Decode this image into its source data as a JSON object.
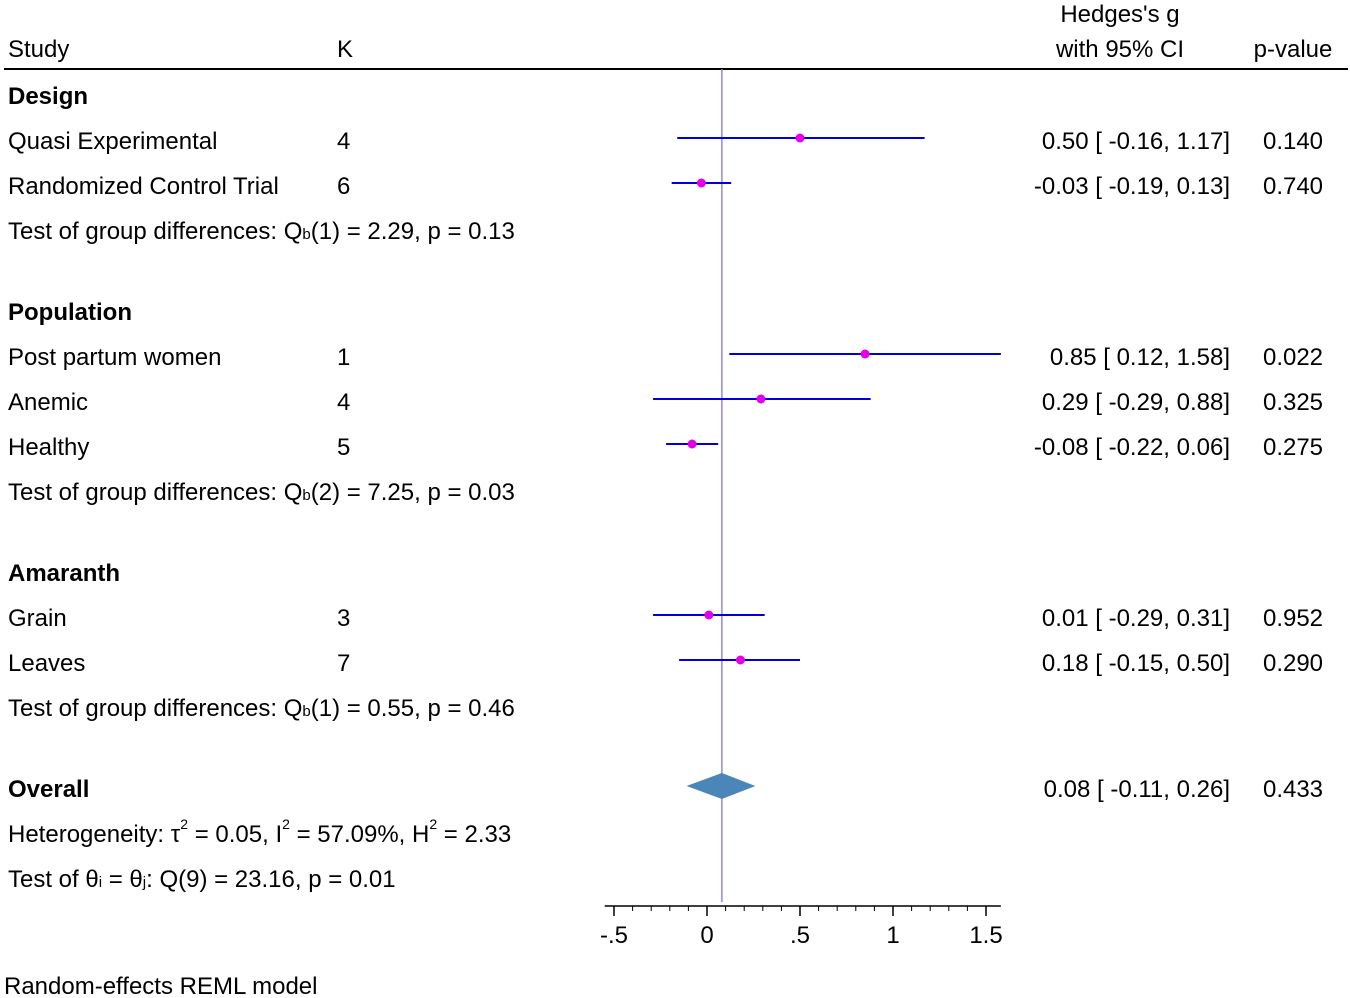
{
  "chart_data": {
    "type": "forest",
    "columns": {
      "study": "Study",
      "k": "K",
      "effect_line1": "Hedges's g",
      "effect_line2": "with 95% CI",
      "pvalue": "p-value"
    },
    "groups": [
      {
        "name": "Design",
        "rows": [
          {
            "label": "Quasi Experimental",
            "k": "4",
            "g": 0.5,
            "lo": -0.16,
            "hi": 1.17,
            "ci_text": "0.50 [ -0.16,  1.17]",
            "p": "0.140"
          },
          {
            "label": "Randomized Control Trial",
            "k": "6",
            "g": -0.03,
            "lo": -0.19,
            "hi": 0.13,
            "ci_text": "-0.03 [ -0.19,  0.13]",
            "p": "0.740"
          }
        ],
        "test_prefix": "Test of group differences: Q",
        "test_sub": "b",
        "test_rest": "(1) = 2.29, p = 0.13"
      },
      {
        "name": "Population",
        "rows": [
          {
            "label": "Post partum women",
            "k": "1",
            "g": 0.85,
            "lo": 0.12,
            "hi": 1.58,
            "ci_text": "0.85 [  0.12,  1.58]",
            "p": "0.022"
          },
          {
            "label": "Anemic",
            "k": "4",
            "g": 0.29,
            "lo": -0.29,
            "hi": 0.88,
            "ci_text": "0.29 [ -0.29,  0.88]",
            "p": "0.325"
          },
          {
            "label": "Healthy",
            "k": "5",
            "g": -0.08,
            "lo": -0.22,
            "hi": 0.06,
            "ci_text": "-0.08 [ -0.22,  0.06]",
            "p": "0.275"
          }
        ],
        "test_prefix": "Test of group differences: Q",
        "test_sub": "b",
        "test_rest": "(2) = 7.25, p = 0.03"
      },
      {
        "name": "Amaranth",
        "rows": [
          {
            "label": "Grain",
            "k": "3",
            "g": 0.01,
            "lo": -0.29,
            "hi": 0.31,
            "ci_text": "0.01 [ -0.29,  0.31]",
            "p": "0.952"
          },
          {
            "label": "Leaves",
            "k": "7",
            "g": 0.18,
            "lo": -0.15,
            "hi": 0.5,
            "ci_text": "0.18 [ -0.15,  0.50]",
            "p": "0.290"
          }
        ],
        "test_prefix": "Test of group differences: Q",
        "test_sub": "b",
        "test_rest": "(1) = 0.55, p = 0.46"
      }
    ],
    "overall": {
      "label": "Overall",
      "g": 0.08,
      "lo": -0.11,
      "hi": 0.26,
      "ci_text": "0.08 [ -0.11,  0.26]",
      "p": "0.433",
      "heterogeneity": {
        "prefix": "Heterogeneity: τ",
        "tau2": "= 0.05, I",
        "i2": "= 57.09%, H",
        "h2": "= 2.33",
        "sup": "2"
      },
      "theta_test": {
        "prefix": "Test of θ",
        "sub_i": "i",
        "eq": " = θ",
        "sub_j": "j",
        "rest": ": Q(9) = 23.16, p = 0.01"
      }
    },
    "x_axis": {
      "range": [
        -0.55,
        1.58
      ],
      "ticks": [
        -0.5,
        0,
        0.5,
        1,
        1.5
      ],
      "tick_labels": [
        "-.5",
        "0",
        ".5",
        "1",
        "1.5"
      ],
      "minor_step": 0.1
    },
    "reference_line": 0.08,
    "footnote": "Random-effects REML model",
    "colors": {
      "ci_line": "#0000dd",
      "point": "#e600e6",
      "diamond": "#4a86b8",
      "ref_line": "#8a7fd6",
      "axis": "#000000"
    }
  }
}
